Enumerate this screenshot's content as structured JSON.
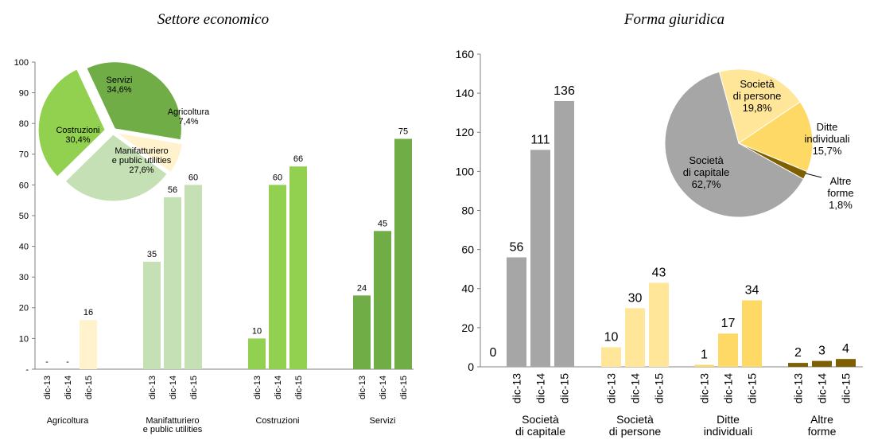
{
  "chart_data": [
    {
      "type": "bar",
      "title": "Settore economico",
      "ylim": [
        0,
        100
      ],
      "yticks": [
        "-",
        "10",
        "20",
        "30",
        "40",
        "50",
        "60",
        "70",
        "80",
        "90",
        "100"
      ],
      "periods": [
        "dic-13",
        "dic-14",
        "dic-15"
      ],
      "groups": [
        {
          "name": "Agricoltura",
          "label_lines": [
            "Agricoltura"
          ],
          "color": "#FFF2CC",
          "values": [
            0,
            0,
            16
          ],
          "labels": [
            "-",
            "-",
            "16"
          ]
        },
        {
          "name": "Manifatturiero e public utilities",
          "label_lines": [
            "Manifatturiero",
            "e public utilities"
          ],
          "color": "#C5E0B4",
          "values": [
            35,
            56,
            60
          ],
          "labels": [
            "35",
            "56",
            "60"
          ]
        },
        {
          "name": "Costruzioni",
          "label_lines": [
            "Costruzioni"
          ],
          "color": "#92D050",
          "values": [
            10,
            60,
            66
          ],
          "labels": [
            "10",
            "60",
            "66"
          ]
        },
        {
          "name": "Servizi",
          "label_lines": [
            "Servizi"
          ],
          "color": "#70AD47",
          "values": [
            24,
            45,
            75
          ],
          "labels": [
            "24",
            "45",
            "75"
          ]
        }
      ],
      "pie": {
        "type": "pie",
        "slices": [
          {
            "name": "Servizi",
            "label_lines": [
              "Servizi",
              "34,6%"
            ],
            "value": 34.6,
            "color": "#70AD47"
          },
          {
            "name": "Agricoltura",
            "label_lines": [
              "Agricoltura",
              "7,4%"
            ],
            "value": 7.4,
            "color": "#FFF2CC"
          },
          {
            "name": "Manifatturiero e public utilities",
            "label_lines": [
              "Manifatturiero",
              "e public utilities",
              "27,6%"
            ],
            "value": 27.6,
            "color": "#C5E0B4"
          },
          {
            "name": "Costruzioni",
            "label_lines": [
              "Costruzioni",
              "30,4%"
            ],
            "value": 30.4,
            "color": "#92D050"
          }
        ]
      }
    },
    {
      "type": "bar",
      "title": "Forma giuridica",
      "ylim": [
        0,
        160
      ],
      "yticks": [
        "0",
        "20",
        "40",
        "60",
        "80",
        "100",
        "120",
        "140",
        "160"
      ],
      "periods": [
        "dic-13",
        "dic-14",
        "dic-15"
      ],
      "groups": [
        {
          "name": "Società di capitale",
          "label_lines": [
            "Società",
            "di capitale"
          ],
          "color": "#A6A6A6",
          "values": [
            56,
            111,
            136
          ],
          "labels": [
            "56",
            "111",
            "136"
          ]
        },
        {
          "name": "Società di persone",
          "label_lines": [
            "Società",
            "di persone"
          ],
          "color": "#FFE699",
          "values": [
            10,
            30,
            43
          ],
          "labels": [
            "10",
            "30",
            "43"
          ]
        },
        {
          "name": "Ditte individuali",
          "label_lines": [
            "Ditte",
            "individuali"
          ],
          "color": "#FFD966",
          "values": [
            1,
            17,
            34
          ],
          "labels": [
            "1",
            "17",
            "34"
          ]
        },
        {
          "name": "Altre forme",
          "label_lines": [
            "Altre",
            "forme"
          ],
          "color": "#7F6000",
          "values": [
            2,
            3,
            4
          ],
          "labels": [
            "2",
            "3",
            "4"
          ]
        }
      ],
      "extra_label": "0",
      "pie": {
        "type": "pie",
        "slices": [
          {
            "name": "Società di capitale",
            "label_lines": [
              "Società",
              "di capitale",
              "62,7%"
            ],
            "value": 62.7,
            "color": "#A6A6A6"
          },
          {
            "name": "Società di persone",
            "label_lines": [
              "Società",
              "di persone",
              "19,8%"
            ],
            "value": 19.8,
            "color": "#FFE699"
          },
          {
            "name": "Ditte individuali",
            "label_lines": [
              "Ditte",
              "individuali",
              "15,7%"
            ],
            "value": 15.7,
            "color": "#FFD966"
          },
          {
            "name": "Altre forme",
            "label_lines": [
              "Altre",
              "forme",
              "1,8%"
            ],
            "value": 1.8,
            "color": "#7F6000"
          }
        ]
      }
    }
  ]
}
